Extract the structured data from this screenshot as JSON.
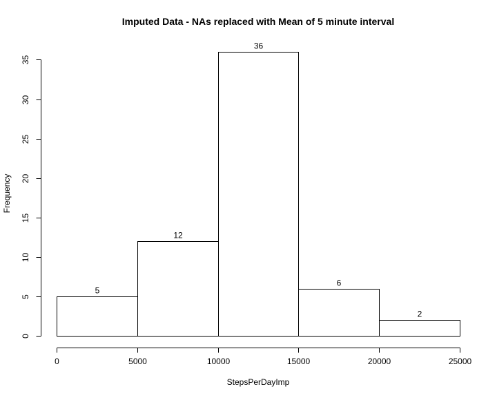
{
  "chart_data": {
    "type": "bar",
    "title": "Imputed Data - NAs replaced with Mean of 5 minute interval",
    "xlabel": "StepsPerDayImp",
    "ylabel": "Frequency",
    "bins": [
      {
        "start": 0,
        "end": 5000,
        "value": 5
      },
      {
        "start": 5000,
        "end": 10000,
        "value": 12
      },
      {
        "start": 10000,
        "end": 15000,
        "value": 36
      },
      {
        "start": 15000,
        "end": 20000,
        "value": 6
      },
      {
        "start": 20000,
        "end": 25000,
        "value": 2
      }
    ],
    "xlim": [
      0,
      25000
    ],
    "ylim": [
      0,
      36
    ],
    "x_ticks": [
      0,
      5000,
      10000,
      15000,
      20000,
      25000
    ],
    "y_ticks": [
      0,
      5,
      10,
      15,
      20,
      25,
      30,
      35
    ],
    "data_labels": [
      "5",
      "12",
      "36",
      "6",
      "2"
    ],
    "grid": false,
    "legend": "none"
  }
}
